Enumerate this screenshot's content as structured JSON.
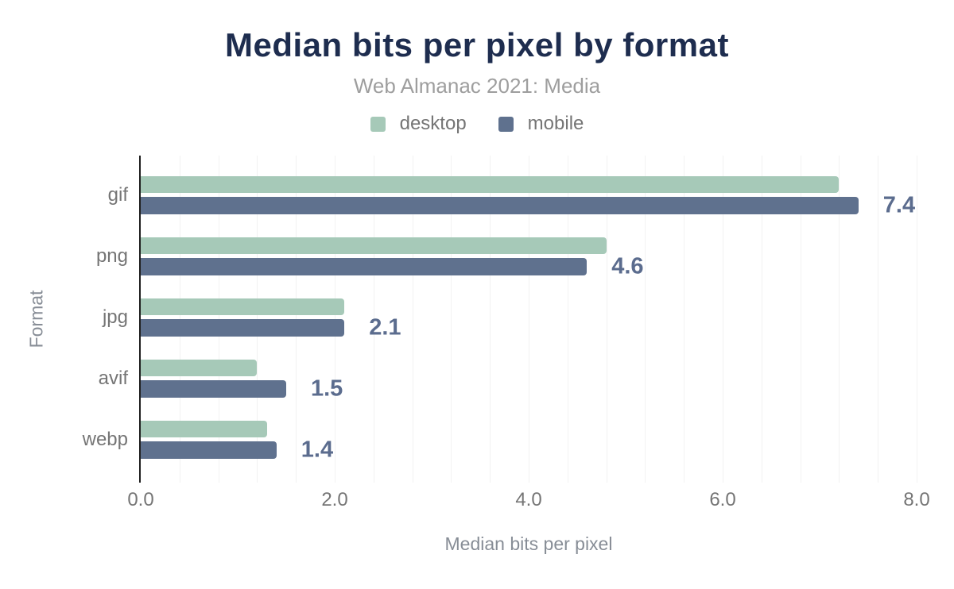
{
  "header": {
    "title": "Median bits per pixel by format",
    "subtitle": "Web Almanac 2021: Media"
  },
  "legend": {
    "items": [
      {
        "label": "desktop",
        "color": "#a6c9b8"
      },
      {
        "label": "mobile",
        "color": "#5f718e"
      }
    ]
  },
  "axes": {
    "x_title": "Median bits per pixel",
    "y_title": "Format",
    "x_ticks": [
      "0.0",
      "2.0",
      "4.0",
      "6.0",
      "8.0"
    ],
    "x_min": 0,
    "x_max": 8,
    "grid_step": 0.4
  },
  "chart_data": {
    "type": "bar",
    "orientation": "horizontal",
    "title": "Median bits per pixel by format",
    "subtitle": "Web Almanac 2021: Media",
    "xlabel": "Median bits per pixel",
    "ylabel": "Format",
    "xlim": [
      0,
      8
    ],
    "x_tick_labels": [
      "0.0",
      "2.0",
      "4.0",
      "6.0",
      "8.0"
    ],
    "grid": "vertical, minor lines every 0.4",
    "legend_position": "top-center",
    "categories": [
      "gif",
      "png",
      "jpg",
      "avif",
      "webp"
    ],
    "series": [
      {
        "name": "desktop",
        "color": "#a6c9b8",
        "values": [
          7.2,
          4.8,
          2.1,
          1.2,
          1.3
        ]
      },
      {
        "name": "mobile",
        "color": "#5f718e",
        "values": [
          7.4,
          4.6,
          2.1,
          1.5,
          1.4
        ]
      }
    ],
    "value_labels": {
      "labeled_series": "mobile",
      "texts": [
        "7.4",
        "4.6",
        "2.1",
        "1.5",
        "1.4"
      ],
      "color": "#5b6c8e"
    }
  },
  "colors": {
    "title": "#1e2d4f",
    "subtitle": "#9e9e9e",
    "tick_text": "#757575",
    "axis_title_text": "#878d96",
    "axis_line": "#1f1f1f",
    "gridline": "#f2f2f2",
    "background": "#ffffff"
  }
}
